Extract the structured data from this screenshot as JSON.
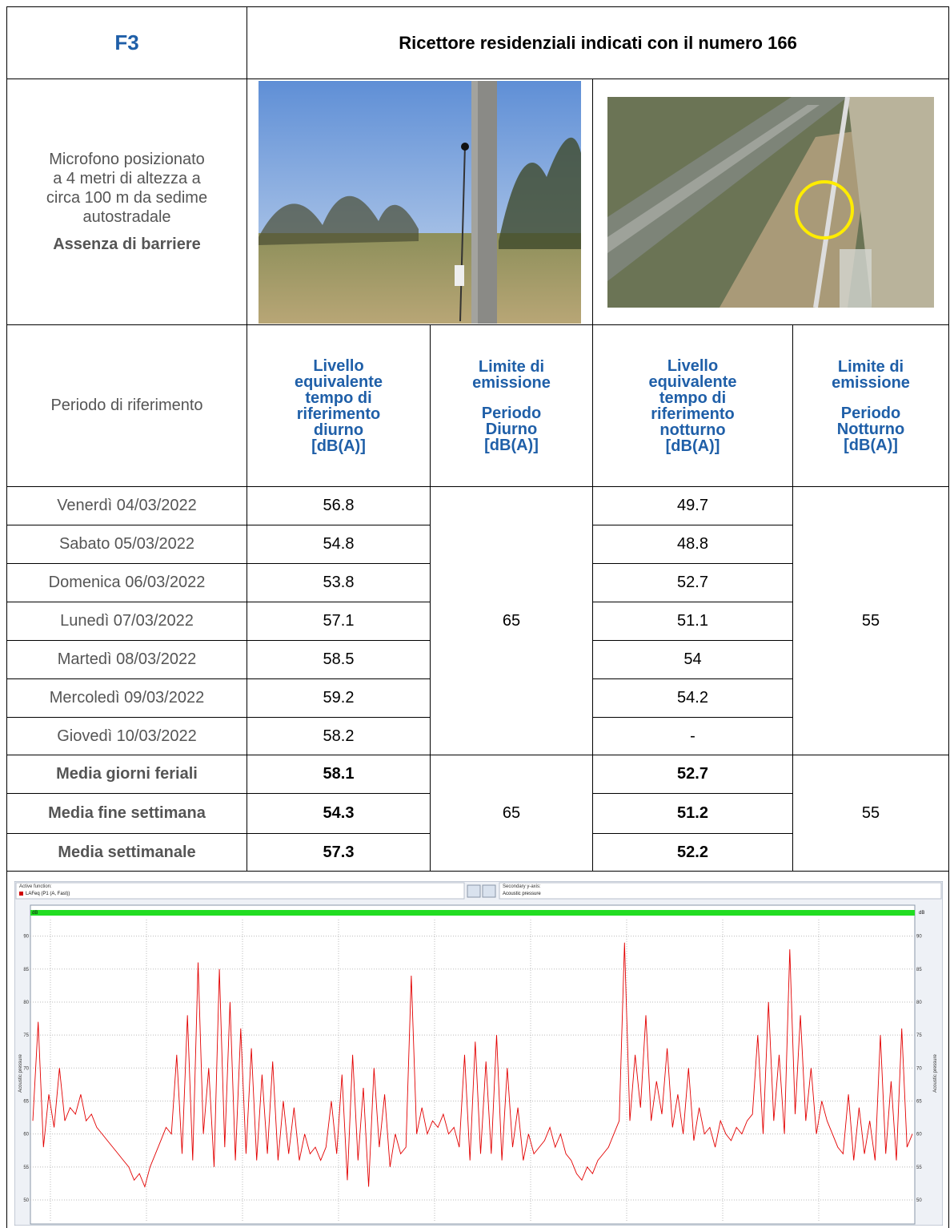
{
  "header": {
    "code": "F3",
    "title": "Ricettore residenziali indicati con il numero 166"
  },
  "description": {
    "text_lines": [
      "Microfono posizionato",
      "a 4 metri di altezza a",
      "circa 100 m da sedime",
      "autostradale"
    ],
    "note": "Assenza di barriere"
  },
  "table": {
    "header": {
      "period": "Periodo di riferimento",
      "day_level": "Livello equivalente tempo di riferimento diurno [dB(A)]",
      "day_limit": [
        "Limite di emissione",
        "Periodo Diurno [dB(A)]"
      ],
      "night_level": "Livello equivalente tempo di riferimento notturno [dB(A)]",
      "night_limit": [
        "Limite di emissione",
        "Periodo Notturno [dB(A)]"
      ]
    },
    "rows": [
      {
        "day": "Venerdì 04/03/2022",
        "day_level": 56.8,
        "night_level": 49.7
      },
      {
        "day": "Sabato 05/03/2022",
        "day_level": 54.8,
        "night_level": 48.8
      },
      {
        "day": "Domenica 06/03/2022",
        "day_level": 53.8,
        "night_level": 52.7
      },
      {
        "day": "Lunedì 07/03/2022",
        "day_level": 57.1,
        "night_level": 51.1
      },
      {
        "day": "Martedì 08/03/2022",
        "day_level": 58.5,
        "night_level": 54
      },
      {
        "day": "Mercoledì 09/03/2022",
        "day_level": 59.2,
        "night_level": 54.2
      },
      {
        "day": "Giovedì 10/03/2022",
        "day_level": 58.2,
        "night_level": "-"
      }
    ],
    "day_limit": 65,
    "night_limit": 55,
    "summary": [
      {
        "label": "Media giorni feriali",
        "day_level": 58.1,
        "night_level": 52.7
      },
      {
        "label": "Media fine settimana",
        "day_level": 54.3,
        "night_level": 51.2
      },
      {
        "label": "Media settimanale",
        "day_level": 57.3,
        "night_level": 52.2
      }
    ],
    "summary_day_limit": 65,
    "summary_night_limit": 55
  },
  "chart": {
    "type": "line",
    "active_function_label": "Active function:",
    "active_function": "LAFeq (P1 (A, Fast))",
    "secondary_axis_label": "Secondary y-axis:",
    "secondary_axis": "Acoustic pressure",
    "y_label": "Acoustic pressure",
    "unit": "dB",
    "color": "#e30000",
    "ylim": [
      46.6,
      92.5
    ],
    "yticks": [
      50,
      55,
      60,
      65,
      70,
      75,
      80,
      85,
      90
    ],
    "grid": true,
    "values": [
      62,
      77,
      58,
      66,
      61,
      70,
      62,
      64,
      63,
      66,
      62,
      63,
      61,
      60,
      59,
      58,
      57,
      56,
      55,
      53,
      54,
      52,
      55,
      57,
      59,
      61,
      60,
      72,
      57,
      78,
      56,
      86,
      60,
      70,
      55,
      85,
      58,
      80,
      56,
      76,
      57,
      73,
      56,
      69,
      57,
      71,
      56,
      65,
      57,
      64,
      56,
      60,
      57,
      58,
      56,
      58,
      65,
      57,
      69,
      53,
      72,
      56,
      67,
      52,
      70,
      58,
      66,
      55,
      60,
      57,
      58,
      84,
      60,
      64,
      60,
      62,
      61,
      63,
      60,
      61,
      58,
      72,
      56,
      74,
      57,
      71,
      57,
      75,
      56,
      70,
      58,
      64,
      56,
      60,
      57,
      58,
      59,
      61,
      58,
      60,
      57,
      56,
      54,
      53,
      55,
      54,
      56,
      57,
      58,
      60,
      62,
      89,
      62,
      72,
      64,
      78,
      62,
      68,
      63,
      73,
      61,
      66,
      60,
      70,
      59,
      64,
      60,
      61,
      58,
      62,
      60,
      59,
      61,
      60,
      62,
      63,
      75,
      60,
      80,
      62,
      72,
      60,
      88,
      63,
      78,
      62,
      70,
      60,
      65,
      62,
      60,
      58,
      57,
      66,
      56,
      64,
      57,
      62,
      56,
      75,
      57,
      68,
      56,
      76,
      58,
      60
    ]
  }
}
